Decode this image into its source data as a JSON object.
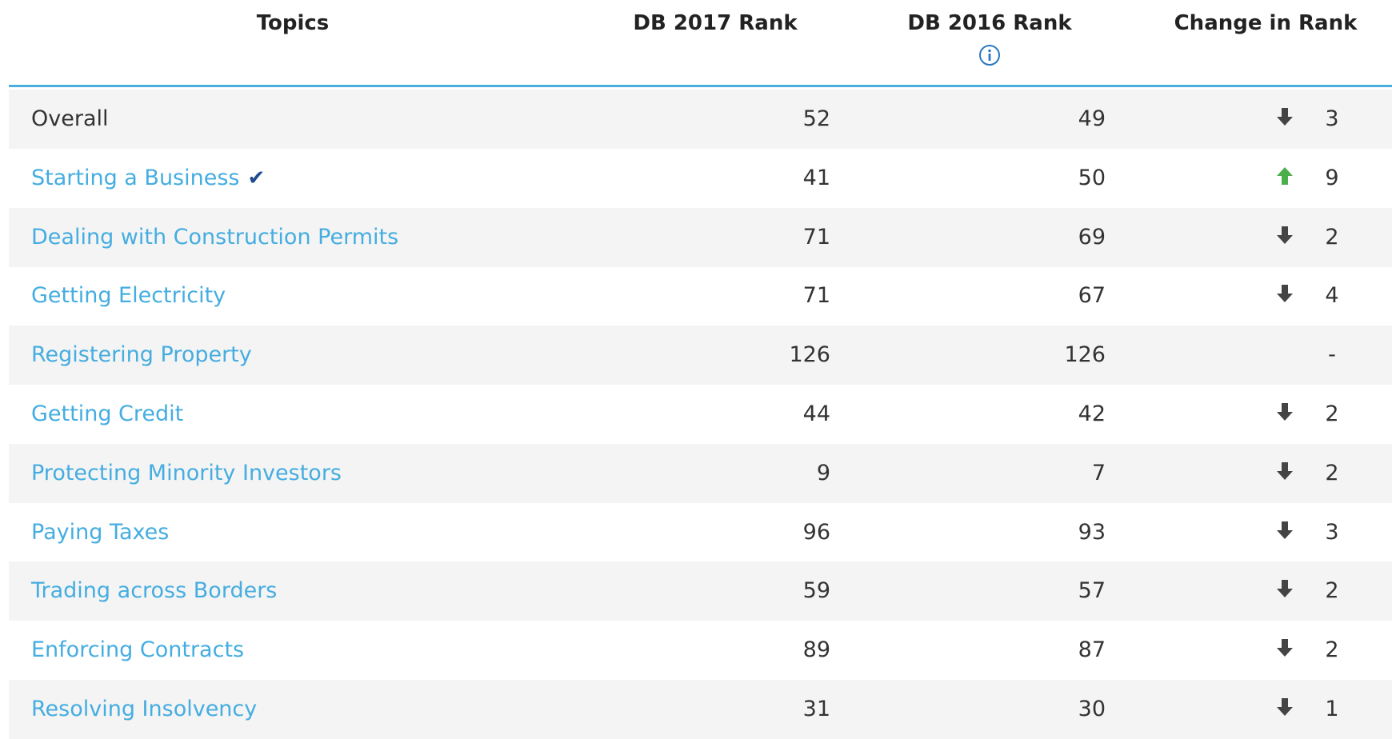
{
  "table": {
    "header": [
      "Topics",
      "DB 2017 Rank",
      "DB 2016 Rank",
      "Change in Rank"
    ],
    "rows": [
      {
        "topic": "Overall",
        "link": false,
        "rank2017": 52,
        "rank2016": 49,
        "direction": "down",
        "change": 3
      },
      {
        "topic": "Starting a Business",
        "link": true,
        "verified": true,
        "rank2017": 41,
        "rank2016": 50,
        "direction": "up",
        "change": 9
      },
      {
        "topic": "Dealing with Construction Permits",
        "link": true,
        "rank2017": 71,
        "rank2016": 69,
        "direction": "down",
        "change": 2
      },
      {
        "topic": "Getting Electricity",
        "link": true,
        "rank2017": 71,
        "rank2016": 67,
        "direction": "down",
        "change": 4
      },
      {
        "topic": "Registering Property",
        "link": true,
        "rank2017": 126,
        "rank2016": 126,
        "direction": null,
        "change": "-"
      },
      {
        "topic": "Getting Credit",
        "link": true,
        "rank2017": 44,
        "rank2016": 42,
        "direction": "down",
        "change": 2
      },
      {
        "topic": "Protecting Minority Investors",
        "link": true,
        "rank2017": 9,
        "rank2016": 7,
        "direction": "down",
        "change": 2
      },
      {
        "topic": "Paying Taxes",
        "link": true,
        "rank2017": 96,
        "rank2016": 93,
        "direction": "down",
        "change": 3
      },
      {
        "topic": "Trading across Borders",
        "link": true,
        "rank2017": 59,
        "rank2016": 57,
        "direction": "down",
        "change": 2
      },
      {
        "topic": "Enforcing Contracts",
        "link": true,
        "rank2017": 89,
        "rank2016": 87,
        "direction": "down",
        "change": 2
      },
      {
        "topic": "Resolving Insolvency",
        "link": true,
        "rank2017": 31,
        "rank2016": 30,
        "direction": "down",
        "change": 1
      }
    ]
  }
}
